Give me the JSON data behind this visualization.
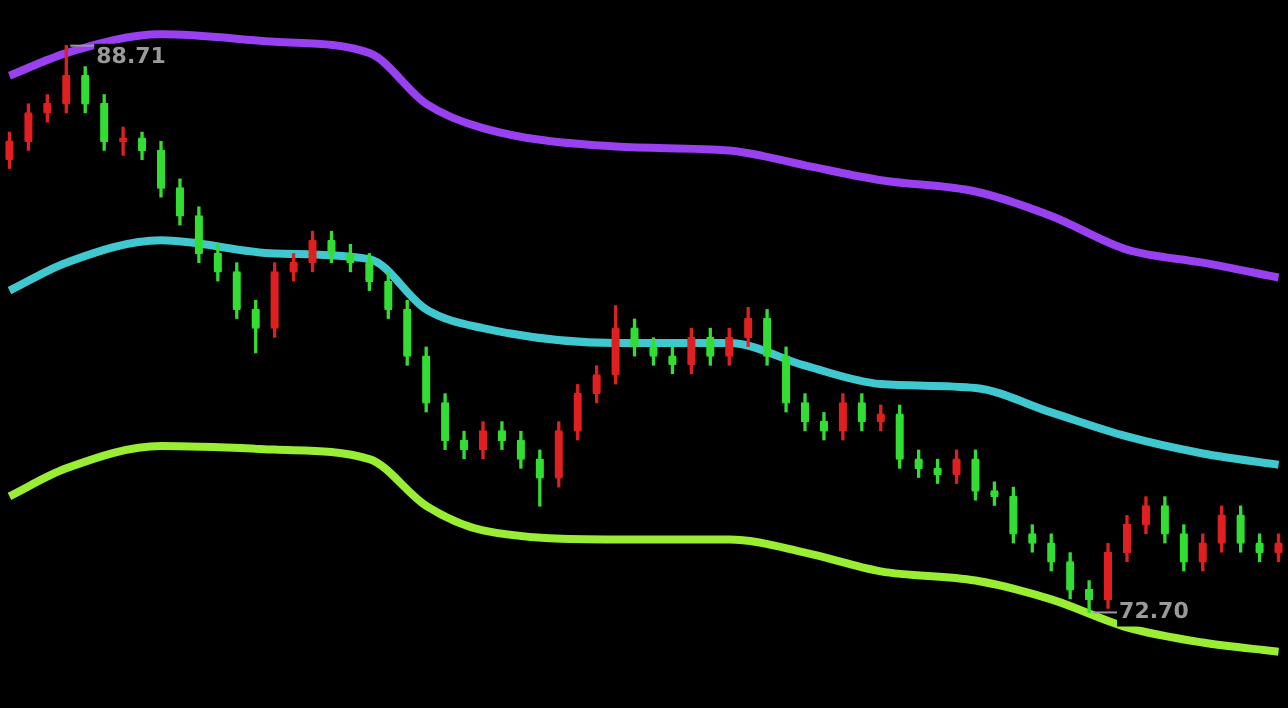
{
  "chart_data": {
    "type": "candlestick",
    "relative": false,
    "tick_labels": false,
    "legend": false,
    "categories": [
      null,
      null,
      null,
      null,
      null,
      null,
      null,
      null,
      null,
      null,
      null,
      null,
      null,
      null,
      null,
      null,
      null,
      null,
      null,
      null,
      null,
      null,
      null,
      null,
      null,
      null,
      null,
      null,
      null,
      null,
      null,
      null,
      null,
      null,
      null,
      null,
      null,
      null,
      null,
      null,
      null,
      null,
      null,
      null,
      null,
      null,
      null,
      null,
      null,
      null,
      null,
      null,
      null,
      null,
      null,
      null,
      null,
      null,
      null,
      null,
      null,
      null,
      null,
      null,
      null,
      null,
      null,
      null
    ],
    "ohlc": [
      [
        85.5,
        86.26,
        85.25,
        86.01
      ],
      [
        86.01,
        87.06,
        85.76,
        86.81
      ],
      [
        86.81,
        87.32,
        86.56,
        87.07
      ],
      [
        87.07,
        88.71,
        86.82,
        87.86
      ],
      [
        87.86,
        88.11,
        86.82,
        87.07
      ],
      [
        87.07,
        87.32,
        85.76,
        86.01
      ],
      [
        86.01,
        86.4,
        85.62,
        86.1
      ],
      [
        86.1,
        86.26,
        85.5,
        85.75
      ],
      [
        85.75,
        86.0,
        84.44,
        84.69
      ],
      [
        84.69,
        84.94,
        83.65,
        83.9
      ],
      [
        83.9,
        84.15,
        82.59,
        82.84
      ],
      [
        82.84,
        83.09,
        82.07,
        82.32
      ],
      [
        82.32,
        82.57,
        81.01,
        81.26
      ],
      [
        81.26,
        81.51,
        80.04,
        80.73
      ],
      [
        80.73,
        82.57,
        80.48,
        82.32
      ],
      [
        82.32,
        82.83,
        82.07,
        82.58
      ],
      [
        82.58,
        83.46,
        82.33,
        83.21
      ],
      [
        83.21,
        83.46,
        82.59,
        82.84
      ],
      [
        82.84,
        83.09,
        82.33,
        82.58
      ],
      [
        82.58,
        82.83,
        81.8,
        82.05
      ],
      [
        82.05,
        82.3,
        81.01,
        81.26
      ],
      [
        81.26,
        81.51,
        79.69,
        79.94
      ],
      [
        79.94,
        80.19,
        78.37,
        78.62
      ],
      [
        78.62,
        78.87,
        77.31,
        77.56
      ],
      [
        77.56,
        77.81,
        77.05,
        77.3
      ],
      [
        77.3,
        78.08,
        77.05,
        77.83
      ],
      [
        77.83,
        78.08,
        77.31,
        77.56
      ],
      [
        77.56,
        77.81,
        76.78,
        77.03
      ],
      [
        77.03,
        77.28,
        75.71,
        76.5
      ],
      [
        76.5,
        78.08,
        76.25,
        77.83
      ],
      [
        77.83,
        79.13,
        77.58,
        78.88
      ],
      [
        78.88,
        79.66,
        78.63,
        79.41
      ],
      [
        79.41,
        81.36,
        79.16,
        80.73
      ],
      [
        80.73,
        80.98,
        79.95,
        80.2
      ],
      [
        80.2,
        80.45,
        79.69,
        79.94
      ],
      [
        79.94,
        80.19,
        79.45,
        79.7
      ],
      [
        79.7,
        80.72,
        79.45,
        80.47
      ],
      [
        80.47,
        80.72,
        79.69,
        79.94
      ],
      [
        79.94,
        80.72,
        79.69,
        80.47
      ],
      [
        80.47,
        81.31,
        80.22,
        81.0
      ],
      [
        81.0,
        81.25,
        79.69,
        79.94
      ],
      [
        79.94,
        80.19,
        78.37,
        78.62
      ],
      [
        78.62,
        78.87,
        77.84,
        78.09
      ],
      [
        78.09,
        78.34,
        77.58,
        77.83
      ],
      [
        77.83,
        78.87,
        77.58,
        78.62
      ],
      [
        78.62,
        78.87,
        77.84,
        78.09
      ],
      [
        78.09,
        78.55,
        77.84,
        78.3
      ],
      [
        78.3,
        78.55,
        76.78,
        77.03
      ],
      [
        77.03,
        77.28,
        76.52,
        76.77
      ],
      [
        76.77,
        77.02,
        76.35,
        76.6
      ],
      [
        76.6,
        77.28,
        76.35,
        77.03
      ],
      [
        77.03,
        77.28,
        75.88,
        76.13
      ],
      [
        76.13,
        76.38,
        75.73,
        75.98
      ],
      [
        75.98,
        76.23,
        74.67,
        74.92
      ],
      [
        74.92,
        75.17,
        74.41,
        74.66
      ],
      [
        74.66,
        74.91,
        73.88,
        74.13
      ],
      [
        74.13,
        74.38,
        73.09,
        73.34
      ],
      [
        73.34,
        73.59,
        72.7,
        73.07
      ],
      [
        73.07,
        74.64,
        72.82,
        74.39
      ],
      [
        74.39,
        75.43,
        74.14,
        75.18
      ],
      [
        75.18,
        75.96,
        74.93,
        75.71
      ],
      [
        75.71,
        75.96,
        74.67,
        74.92
      ],
      [
        74.92,
        75.17,
        73.88,
        74.13
      ],
      [
        74.13,
        74.91,
        73.88,
        74.66
      ],
      [
        74.66,
        75.7,
        74.41,
        75.45
      ],
      [
        75.45,
        75.7,
        74.41,
        74.66
      ],
      [
        74.66,
        74.91,
        74.14,
        74.39
      ],
      [
        74.39,
        74.91,
        74.14,
        74.66
      ]
    ],
    "colors": [
      "#e02020",
      "#e02020",
      "#e02020",
      "#e02020",
      "#33dd33",
      "#33dd33",
      "#e02020",
      "#33dd33",
      "#33dd33",
      "#33dd33",
      "#33dd33",
      "#33dd33",
      "#33dd33",
      "#33dd33",
      "#e02020",
      "#e02020",
      "#e02020",
      "#33dd33",
      "#33dd33",
      "#33dd33",
      "#33dd33",
      "#33dd33",
      "#33dd33",
      "#33dd33",
      "#33dd33",
      "#e02020",
      "#33dd33",
      "#33dd33",
      "#33dd33",
      "#e02020",
      "#e02020",
      "#e02020",
      "#e02020",
      "#33dd33",
      "#33dd33",
      "#33dd33",
      "#e02020",
      "#33dd33",
      "#e02020",
      "#e02020",
      "#33dd33",
      "#33dd33",
      "#33dd33",
      "#33dd33",
      "#e02020",
      "#33dd33",
      "#e02020",
      "#33dd33",
      "#33dd33",
      "#33dd33",
      "#e02020",
      "#33dd33",
      "#33dd33",
      "#33dd33",
      "#33dd33",
      "#33dd33",
      "#33dd33",
      "#33dd33",
      "#e02020",
      "#e02020",
      "#e02020",
      "#33dd33",
      "#33dd33",
      "#e02020",
      "#e02020",
      "#33dd33",
      "#33dd33",
      "#e02020"
    ],
    "series": [
      {
        "type": "line",
        "color": "#9940f0",
        "values": [
          87.86,
          null,
          null,
          88.5,
          null,
          null,
          null,
          null,
          89.03,
          null,
          null,
          null,
          null,
          null,
          88.82,
          null,
          null,
          null,
          null,
          88.5,
          null,
          null,
          87.07,
          null,
          null,
          86.38,
          null,
          null,
          null,
          null,
          null,
          null,
          85.86,
          null,
          null,
          null,
          null,
          null,
          85.75,
          null,
          null,
          null,
          85.33,
          null,
          null,
          null,
          84.91,
          null,
          null,
          null,
          null,
          84.59,
          null,
          null,
          null,
          83.9,
          null,
          null,
          null,
          82.95,
          null,
          null,
          null,
          82.58,
          null,
          null,
          null,
          82.16
        ]
      },
      {
        "type": "line",
        "color": "#40c8d0",
        "values": [
          81.79,
          null,
          null,
          82.58,
          null,
          null,
          null,
          null,
          83.21,
          null,
          null,
          null,
          null,
          null,
          82.84,
          null,
          null,
          null,
          null,
          82.68,
          null,
          null,
          81.26,
          null,
          null,
          80.73,
          null,
          null,
          null,
          null,
          null,
          null,
          80.31,
          null,
          null,
          null,
          null,
          null,
          80.31,
          null,
          null,
          null,
          79.67,
          null,
          null,
          null,
          79.15,
          null,
          null,
          null,
          null,
          79.04,
          null,
          null,
          null,
          78.35,
          null,
          null,
          null,
          77.67,
          null,
          null,
          null,
          77.19,
          null,
          null,
          null,
          76.87
        ]
      },
      {
        "type": "line",
        "color": "#99ee33",
        "values": [
          75.98,
          null,
          null,
          76.77,
          null,
          null,
          null,
          null,
          77.4,
          null,
          null,
          null,
          null,
          null,
          77.3,
          null,
          null,
          null,
          null,
          77.03,
          null,
          null,
          75.71,
          null,
          null,
          75.02,
          null,
          null,
          null,
          null,
          null,
          null,
          74.76,
          null,
          null,
          null,
          null,
          null,
          74.76,
          null,
          null,
          null,
          74.39,
          null,
          null,
          null,
          73.86,
          null,
          null,
          null,
          null,
          73.6,
          null,
          null,
          null,
          73.07,
          null,
          null,
          null,
          72.28,
          null,
          null,
          null,
          71.85,
          null,
          null,
          null,
          71.59
        ]
      }
    ],
    "annotations": [
      {
        "text": "88.71",
        "y": 88.71
      },
      "72.70"
    ]
  }
}
